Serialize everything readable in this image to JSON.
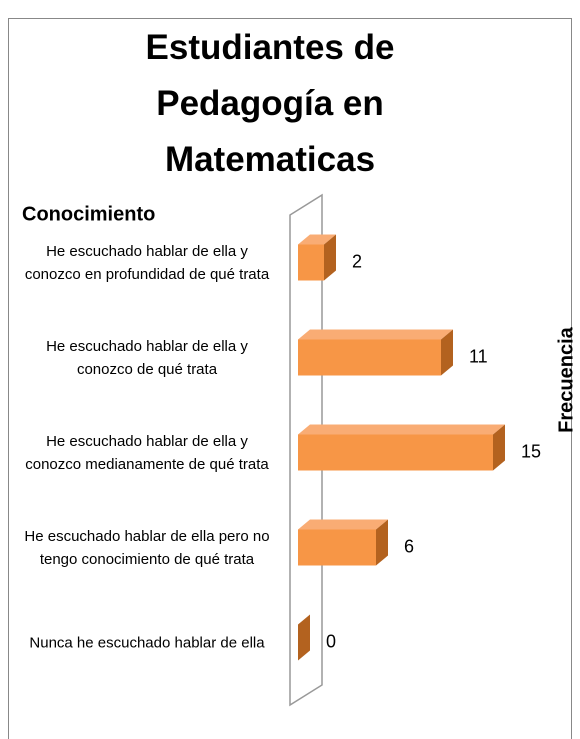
{
  "chart_data": {
    "type": "bar3d_horizontal",
    "title": "Estudiantes de Pedagogía en Matematicas",
    "y_axis_label": "Conocimiento",
    "x_axis_label": "Frecuencia",
    "categories": [
      "He escuchado hablar de ella y conozco en profundidad de qué trata",
      "He escuchado hablar de ella y conozco de qué trata",
      "He escuchado hablar de ella y conozco medianamente de qué trata",
      "He escuchado hablar de ella pero no tengo conocimiento de qué trata",
      "Nunca he escuchado hablar de ella"
    ],
    "values": [
      2,
      11,
      15,
      6,
      0
    ],
    "color": "#f79646",
    "xlim": [
      0,
      15
    ]
  }
}
